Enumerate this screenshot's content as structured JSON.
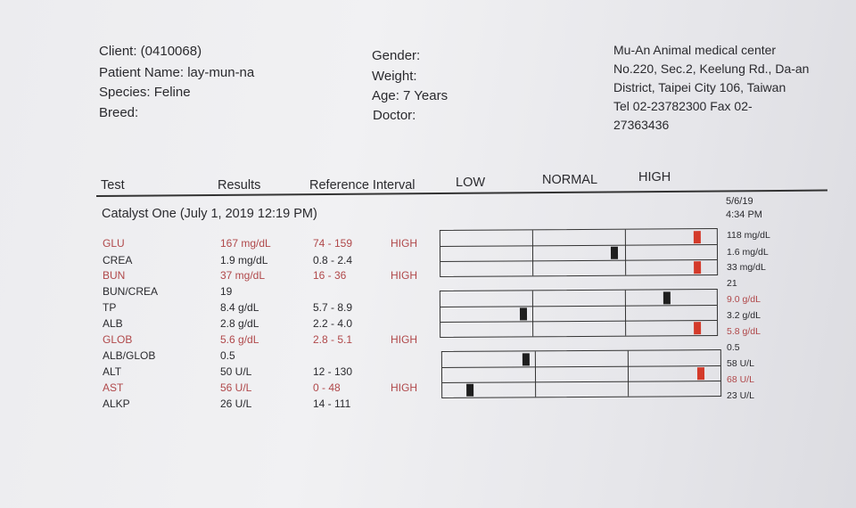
{
  "header": {
    "client": "Client: (0410068)",
    "patient_name": "Patient Name: lay-mun-na",
    "species": "Species: Feline",
    "breed": "Breed:",
    "gender": "Gender:",
    "weight": "Weight:",
    "age": "Age: 7 Years",
    "doctor": "Doctor:",
    "clinic": [
      "Mu-An Animal medical center",
      "No.220, Sec.2, Keelung Rd., Da-an",
      "District, Taipei City 106, Taiwan",
      "Tel 02-23782300  Fax 02-",
      "27363436"
    ]
  },
  "columns": {
    "test": "Test",
    "results": "Results",
    "reference": "Reference Interval",
    "low": "LOW",
    "normal": "NORMAL",
    "high": "HIGH"
  },
  "section": {
    "title": "Catalyst One (July 1, 2019 12:19 PM)",
    "prev_date": "5/6/19",
    "prev_time": "4:34 PM"
  },
  "rows": [
    {
      "test": "GLU",
      "result": "167 mg/dL",
      "ref": "74 - 159",
      "flag": "HIGH",
      "prev": "118 mg/dL",
      "abnormal": true,
      "position": 0.93
    },
    {
      "test": "CREA",
      "result": "1.9 mg/dL",
      "ref": "0.8 - 2.4",
      "flag": "",
      "prev": "1.6 mg/dL",
      "abnormal": false,
      "position": 0.63
    },
    {
      "test": "BUN",
      "result": "37 mg/dL",
      "ref": "16 - 36",
      "flag": "HIGH",
      "prev": "33 mg/dL",
      "abnormal": true,
      "position": 0.93
    },
    {
      "test": "BUN/CREA",
      "result": "19",
      "ref": "",
      "flag": "",
      "prev": "21",
      "abnormal": false,
      "position": null
    },
    {
      "test": "TP",
      "result": "8.4 g/dL",
      "ref": "5.7 - 8.9",
      "flag": "",
      "prev": "9.0 g/dL",
      "abnormal": false,
      "position": 0.82
    },
    {
      "test": "ALB",
      "result": "2.8 g/dL",
      "ref": "2.2 - 4.0",
      "flag": "",
      "prev": "3.2 g/dL",
      "abnormal": false,
      "position": 0.3
    },
    {
      "test": "GLOB",
      "result": "5.6 g/dL",
      "ref": "2.8 - 5.1",
      "flag": "HIGH",
      "prev": "5.8 g/dL",
      "abnormal": true,
      "position": 0.93
    },
    {
      "test": "ALB/GLOB",
      "result": "0.5",
      "ref": "",
      "flag": "",
      "prev": "0.5",
      "abnormal": false,
      "position": null
    },
    {
      "test": "ALT",
      "result": "50 U/L",
      "ref": "12 - 130",
      "flag": "",
      "prev": "58 U/L",
      "abnormal": false,
      "position": 0.3
    },
    {
      "test": "AST",
      "result": "56 U/L",
      "ref": "0 - 48",
      "flag": "HIGH",
      "prev": "68 U/L",
      "abnormal": true,
      "position": 0.93
    },
    {
      "test": "ALKP",
      "result": "26 U/L",
      "ref": "14 - 111",
      "flag": "",
      "prev": "23 U/L",
      "abnormal": false,
      "position": 0.1
    }
  ],
  "prev_abnormal": [
    false,
    false,
    false,
    false,
    true,
    false,
    true,
    false,
    false,
    true,
    false
  ],
  "colors": {
    "red": "#b0484a",
    "mark_red": "#d43a2a",
    "mark_dark": "#1e1e1e"
  }
}
